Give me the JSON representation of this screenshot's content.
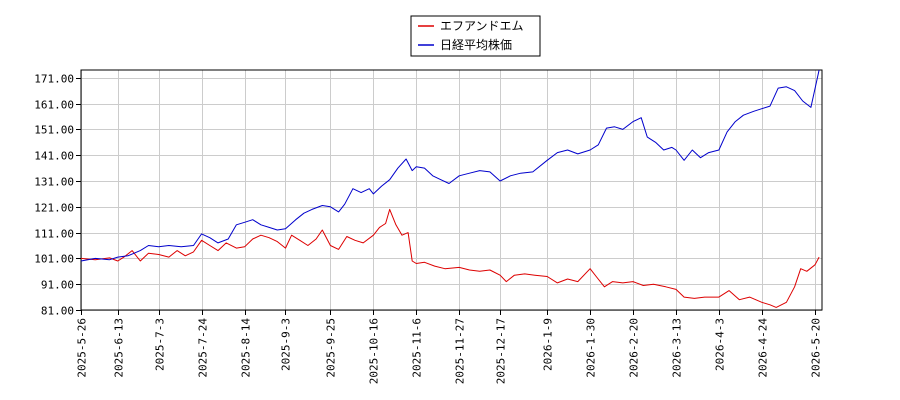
{
  "chart_data": {
    "type": "line",
    "title": "",
    "xlabel": "",
    "ylabel": "",
    "ylim": [
      81.0,
      174.0
    ],
    "y_ticks": [
      "81.00",
      "91.00",
      "101.00",
      "111.00",
      "121.00",
      "131.00",
      "141.00",
      "151.00",
      "161.00",
      "171.00"
    ],
    "x_ticks": [
      "2025-5-26",
      "2025-6-13",
      "2025-7-3",
      "2025-7-24",
      "2025-8-14",
      "2025-9-3",
      "2025-9-25",
      "2025-10-16",
      "2025-11-6",
      "2025-11-27",
      "2025-12-17",
      "2026-1-9",
      "2026-1-30",
      "2026-2-20",
      "2026-3-13",
      "2026-4-3",
      "2026-4-24",
      "2026-5-20"
    ],
    "grid": true,
    "legend_position": "top-center",
    "series": [
      {
        "name": "エフアンドエム",
        "color": "#dd0000",
        "points": [
          [
            "2025-5-26",
            101.0
          ],
          [
            "2025-6-2",
            100.5
          ],
          [
            "2025-6-9",
            101.2
          ],
          [
            "2025-6-13",
            100.0
          ],
          [
            "2025-6-16",
            101.5
          ],
          [
            "2025-6-20",
            104.0
          ],
          [
            "2025-6-24",
            100.0
          ],
          [
            "2025-6-28",
            103.0
          ],
          [
            "2025-7-3",
            102.5
          ],
          [
            "2025-7-8",
            101.5
          ],
          [
            "2025-7-12",
            104.0
          ],
          [
            "2025-7-16",
            102.0
          ],
          [
            "2025-7-20",
            103.5
          ],
          [
            "2025-7-24",
            108.0
          ],
          [
            "2025-7-28",
            106.0
          ],
          [
            "2025-8-1",
            104.0
          ],
          [
            "2025-8-5",
            107.0
          ],
          [
            "2025-8-10",
            105.0
          ],
          [
            "2025-8-14",
            105.5
          ],
          [
            "2025-8-18",
            108.5
          ],
          [
            "2025-8-22",
            110.0
          ],
          [
            "2025-8-26",
            109.0
          ],
          [
            "2025-8-30",
            107.5
          ],
          [
            "2025-9-3",
            105.0
          ],
          [
            "2025-9-6",
            110.0
          ],
          [
            "2025-9-10",
            108.0
          ],
          [
            "2025-9-14",
            106.0
          ],
          [
            "2025-9-18",
            108.5
          ],
          [
            "2025-9-21",
            112.0
          ],
          [
            "2025-9-25",
            106.0
          ],
          [
            "2025-9-29",
            104.5
          ],
          [
            "2025-10-3",
            109.5
          ],
          [
            "2025-10-7",
            108.0
          ],
          [
            "2025-10-11",
            107.0
          ],
          [
            "2025-10-16",
            110.0
          ],
          [
            "2025-10-19",
            113.0
          ],
          [
            "2025-10-22",
            114.5
          ],
          [
            "2025-10-24",
            120.0
          ],
          [
            "2025-10-27",
            114.0
          ],
          [
            "2025-10-30",
            110.0
          ],
          [
            "2025-11-2",
            111.0
          ],
          [
            "2025-11-4",
            100.0
          ],
          [
            "2025-11-6",
            99.0
          ],
          [
            "2025-11-10",
            99.5
          ],
          [
            "2025-11-15",
            98.0
          ],
          [
            "2025-11-20",
            97.0
          ],
          [
            "2025-11-27",
            97.5
          ],
          [
            "2025-12-2",
            96.5
          ],
          [
            "2025-12-7",
            96.0
          ],
          [
            "2025-12-12",
            96.5
          ],
          [
            "2025-12-17",
            94.5
          ],
          [
            "2025-12-20",
            92.0
          ],
          [
            "2025-12-24",
            94.5
          ],
          [
            "2025-12-29",
            95.0
          ],
          [
            "2026-1-3",
            94.5
          ],
          [
            "2026-1-9",
            94.0
          ],
          [
            "2026-1-14",
            91.5
          ],
          [
            "2026-1-19",
            93.0
          ],
          [
            "2026-1-24",
            92.0
          ],
          [
            "2026-1-30",
            97.0
          ],
          [
            "2026-2-2",
            94.0
          ],
          [
            "2026-2-6",
            90.0
          ],
          [
            "2026-2-10",
            92.0
          ],
          [
            "2026-2-15",
            91.5
          ],
          [
            "2026-2-20",
            92.0
          ],
          [
            "2026-2-25",
            90.5
          ],
          [
            "2026-3-2",
            91.0
          ],
          [
            "2026-3-8",
            90.0
          ],
          [
            "2026-3-13",
            89.0
          ],
          [
            "2026-3-17",
            86.0
          ],
          [
            "2026-3-22",
            85.5
          ],
          [
            "2026-3-27",
            86.0
          ],
          [
            "2026-4-3",
            86.0
          ],
          [
            "2026-4-8",
            88.5
          ],
          [
            "2026-4-13",
            85.0
          ],
          [
            "2026-4-18",
            86.0
          ],
          [
            "2026-4-24",
            84.0
          ],
          [
            "2026-4-28",
            83.0
          ],
          [
            "2026-5-1",
            82.0
          ],
          [
            "2026-5-6",
            84.0
          ],
          [
            "2026-5-10",
            90.0
          ],
          [
            "2026-5-13",
            97.0
          ],
          [
            "2026-5-16",
            96.0
          ],
          [
            "2026-5-20",
            98.5
          ],
          [
            "2026-5-22",
            101.5
          ]
        ]
      },
      {
        "name": "日経平均株価",
        "color": "#0000cc",
        "points": [
          [
            "2025-5-26",
            100.0
          ],
          [
            "2025-6-2",
            101.0
          ],
          [
            "2025-6-9",
            100.5
          ],
          [
            "2025-6-13",
            101.5
          ],
          [
            "2025-6-18",
            102.0
          ],
          [
            "2025-6-24",
            104.0
          ],
          [
            "2025-6-28",
            106.0
          ],
          [
            "2025-7-3",
            105.5
          ],
          [
            "2025-7-8",
            106.0
          ],
          [
            "2025-7-14",
            105.5
          ],
          [
            "2025-7-20",
            106.0
          ],
          [
            "2025-7-24",
            110.5
          ],
          [
            "2025-7-28",
            109.0
          ],
          [
            "2025-8-1",
            107.0
          ],
          [
            "2025-8-6",
            108.5
          ],
          [
            "2025-8-10",
            114.0
          ],
          [
            "2025-8-14",
            115.0
          ],
          [
            "2025-8-18",
            116.0
          ],
          [
            "2025-8-22",
            114.0
          ],
          [
            "2025-8-26",
            113.0
          ],
          [
            "2025-8-30",
            112.0
          ],
          [
            "2025-9-3",
            112.5
          ],
          [
            "2025-9-8",
            116.0
          ],
          [
            "2025-9-12",
            118.5
          ],
          [
            "2025-9-16",
            120.0
          ],
          [
            "2025-9-21",
            121.5
          ],
          [
            "2025-9-25",
            121.0
          ],
          [
            "2025-9-29",
            119.0
          ],
          [
            "2025-10-2",
            122.0
          ],
          [
            "2025-10-6",
            128.0
          ],
          [
            "2025-10-10",
            126.5
          ],
          [
            "2025-10-14",
            128.0
          ],
          [
            "2025-10-16",
            126.0
          ],
          [
            "2025-10-20",
            129.0
          ],
          [
            "2025-10-24",
            131.5
          ],
          [
            "2025-10-28",
            136.0
          ],
          [
            "2025-11-1",
            139.5
          ],
          [
            "2025-11-4",
            135.0
          ],
          [
            "2025-11-6",
            136.5
          ],
          [
            "2025-11-10",
            136.0
          ],
          [
            "2025-11-14",
            133.0
          ],
          [
            "2025-11-18",
            131.5
          ],
          [
            "2025-11-22",
            130.0
          ],
          [
            "2025-11-27",
            133.0
          ],
          [
            "2025-12-2",
            134.0
          ],
          [
            "2025-12-7",
            135.0
          ],
          [
            "2025-12-12",
            134.5
          ],
          [
            "2025-12-17",
            131.0
          ],
          [
            "2025-12-22",
            133.0
          ],
          [
            "2025-12-27",
            134.0
          ],
          [
            "2026-1-2",
            134.5
          ],
          [
            "2026-1-9",
            139.0
          ],
          [
            "2026-1-14",
            142.0
          ],
          [
            "2026-1-19",
            143.0
          ],
          [
            "2026-1-24",
            141.5
          ],
          [
            "2026-1-30",
            143.0
          ],
          [
            "2026-2-3",
            145.0
          ],
          [
            "2026-2-7",
            151.5
          ],
          [
            "2026-2-11",
            152.0
          ],
          [
            "2026-2-15",
            151.0
          ],
          [
            "2026-2-20",
            154.0
          ],
          [
            "2026-2-24",
            155.5
          ],
          [
            "2026-2-27",
            148.0
          ],
          [
            "2026-3-3",
            146.0
          ],
          [
            "2026-3-7",
            143.0
          ],
          [
            "2026-3-11",
            144.0
          ],
          [
            "2026-3-13",
            143.0
          ],
          [
            "2026-3-17",
            139.0
          ],
          [
            "2026-3-21",
            143.0
          ],
          [
            "2026-3-25",
            140.0
          ],
          [
            "2026-3-29",
            142.0
          ],
          [
            "2026-4-3",
            143.0
          ],
          [
            "2026-4-7",
            150.0
          ],
          [
            "2026-4-11",
            154.0
          ],
          [
            "2026-4-15",
            156.5
          ],
          [
            "2026-4-20",
            158.0
          ],
          [
            "2026-4-24",
            159.0
          ],
          [
            "2026-4-28",
            160.0
          ],
          [
            "2026-5-2",
            167.0
          ],
          [
            "2026-5-6",
            167.5
          ],
          [
            "2026-5-10",
            166.0
          ],
          [
            "2026-5-14",
            162.0
          ],
          [
            "2026-5-18",
            159.5
          ],
          [
            "2026-5-22",
            174.0
          ]
        ]
      }
    ]
  }
}
